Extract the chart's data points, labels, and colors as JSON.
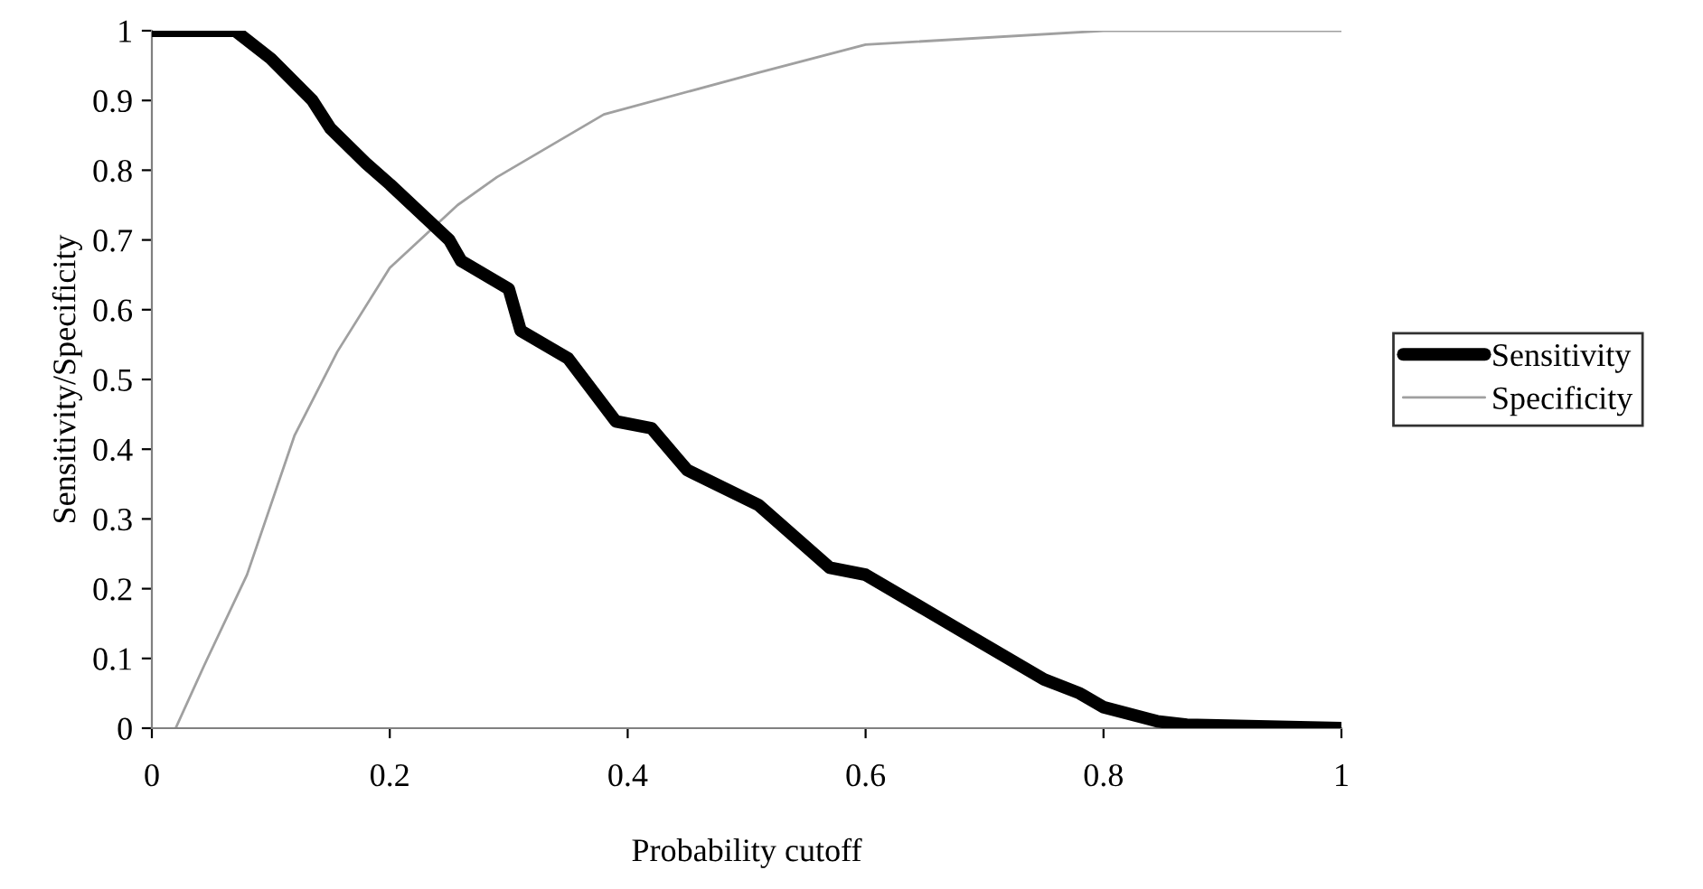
{
  "chart_data": {
    "type": "line",
    "xlabel": "Probability cutoff",
    "ylabel": "Sensitivity/Specificity",
    "xlim": [
      0,
      1
    ],
    "xticks": [
      0,
      0.2,
      0.4,
      0.6,
      0.8,
      1
    ],
    "ylim": [
      0,
      1
    ],
    "yticks": [
      0,
      0.1,
      0.2,
      0.3,
      0.4,
      0.5,
      0.6,
      0.7,
      0.8,
      0.9,
      1
    ],
    "grid": false,
    "legend": "right",
    "marker": "none",
    "line_style": "solid",
    "series": [
      {
        "name": "Sensitivity",
        "color": "#000000",
        "x": [
          0,
          0.07,
          0.1,
          0.135,
          0.15,
          0.18,
          0.2,
          0.25,
          0.26,
          0.3,
          0.31,
          0.35,
          0.39,
          0.42,
          0.45,
          0.51,
          0.57,
          0.6,
          0.65,
          0.69,
          0.75,
          0.78,
          0.8,
          0.845,
          0.87,
          1
        ],
        "values": [
          1,
          1,
          0.96,
          0.9,
          0.86,
          0.81,
          0.78,
          0.7,
          0.67,
          0.63,
          0.57,
          0.53,
          0.44,
          0.43,
          0.37,
          0.32,
          0.23,
          0.22,
          0.17,
          0.13,
          0.07,
          0.05,
          0.03,
          0.01,
          0.005,
          0
        ]
      },
      {
        "name": "Specificity",
        "color": "#a0a0a0",
        "x": [
          0.02,
          0.044,
          0.08,
          0.12,
          0.156,
          0.2,
          0.257,
          0.29,
          0.38,
          0.51,
          0.6,
          0.8,
          1
        ],
        "values": [
          0,
          0.09,
          0.22,
          0.42,
          0.54,
          0.66,
          0.75,
          0.79,
          0.88,
          0.94,
          0.98,
          1,
          1
        ]
      }
    ]
  }
}
